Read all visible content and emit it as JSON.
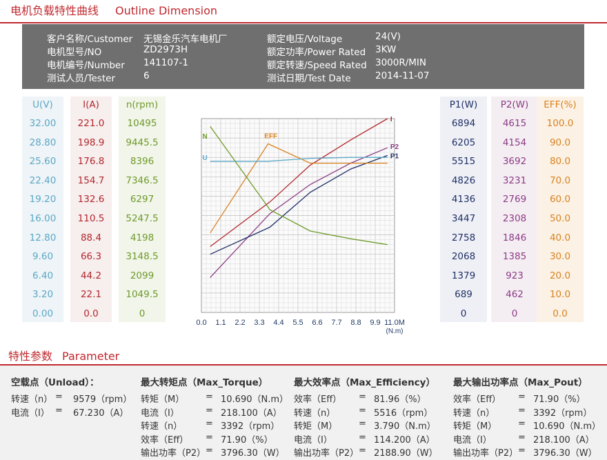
{
  "header": {
    "title_cn": "电机负载特性曲线",
    "title_en": "Outline Dimension"
  },
  "info": [
    {
      "label": "客户名称/Customer",
      "value": "无锡金乐汽车电机厂",
      "label2": "额定电压/Voltage",
      "value2": "24(V)"
    },
    {
      "label": "电机型号/NO",
      "value": "ZD2973H",
      "label2": "额定功率/Power Rated",
      "value2": "3KW"
    },
    {
      "label": "电机编号/Number",
      "value": "141107-1",
      "label2": "额定转速/Speed Rated",
      "value2": "3000R/MIN"
    },
    {
      "label": "测试人员/Tester",
      "value": "6",
      "label2": "测试日期/Test Date",
      "value2": "2014-11-07"
    }
  ],
  "columns": {
    "u": {
      "header": "U(V)",
      "color": "#5ba7c7",
      "values": [
        "32.00",
        "28.80",
        "25.60",
        "22.40",
        "19.20",
        "16.00",
        "12.80",
        "9.60",
        "6.40",
        "3.20",
        "0.00"
      ]
    },
    "i": {
      "header": "I(A)",
      "color": "#b3262b",
      "values": [
        "221.0",
        "198.9",
        "176.8",
        "154.7",
        "132.6",
        "110.5",
        "88.4",
        "66.3",
        "44.2",
        "22.1",
        "0.0"
      ]
    },
    "n": {
      "header": "n(rpm)",
      "color": "#6f9a2a",
      "values": [
        "10495",
        "9445.5",
        "8396",
        "7346.5",
        "6297",
        "5247.5",
        "4198",
        "3148.5",
        "2099",
        "1049.5",
        "0"
      ]
    },
    "p1": {
      "header": "P1(W)",
      "color": "#1f2f66",
      "values": [
        "6894",
        "6205",
        "5515",
        "4826",
        "4136",
        "3447",
        "2758",
        "2068",
        "1379",
        "689",
        "0"
      ]
    },
    "p2": {
      "header": "P2(W)",
      "color": "#8c3b84",
      "values": [
        "4615",
        "4154",
        "3692",
        "3231",
        "2769",
        "2308",
        "1846",
        "1385",
        "923",
        "462",
        "0"
      ]
    },
    "eff": {
      "header": "EFF(%)",
      "color": "#d9821f",
      "values": [
        "100.0",
        "90.0",
        "80.0",
        "70.0",
        "60.0",
        "50.0",
        "40.0",
        "30.0",
        "20.0",
        "10.0",
        "0.0"
      ]
    }
  },
  "chart_data": {
    "type": "line",
    "x_ticks": [
      "0.0",
      "1.1",
      "2.2",
      "3.3",
      "4.4",
      "5.5",
      "6.6",
      "7.7",
      "8.8",
      "9.9",
      "11.0M"
    ],
    "x_unit": "(N.m)",
    "xlim": [
      0,
      11.0
    ],
    "ylim": [
      0,
      10
    ],
    "series": [
      {
        "name": "I",
        "color": "#b3262b",
        "x": [
          0.5,
          3.9,
          6.2,
          8.5,
          10.6
        ],
        "y": [
          3.4,
          5.7,
          7.6,
          8.9,
          10.0
        ]
      },
      {
        "name": "P2",
        "color": "#8c3b84",
        "x": [
          0.5,
          3.9,
          6.2,
          8.5,
          10.6
        ],
        "y": [
          1.8,
          5.1,
          6.6,
          7.7,
          8.5
        ]
      },
      {
        "name": "P1",
        "color": "#1f2f66",
        "x": [
          0.5,
          3.9,
          6.2,
          8.5,
          10.6
        ],
        "y": [
          3.0,
          4.4,
          6.2,
          7.4,
          8.1
        ]
      },
      {
        "name": "EFF",
        "color": "#d9821f",
        "x": [
          0.5,
          3.8,
          6.2,
          8.5,
          10.6
        ],
        "y": [
          4.1,
          8.7,
          7.7,
          7.7,
          7.7
        ]
      },
      {
        "name": "U",
        "color": "#5ba7c7",
        "x": [
          0.5,
          3.8,
          6.2,
          8.5,
          10.6
        ],
        "y": [
          7.8,
          7.8,
          7.95,
          8.0,
          8.0
        ]
      },
      {
        "name": "N",
        "color": "#6f9a2a",
        "x": [
          0.5,
          3.9,
          6.2,
          8.5,
          10.6
        ],
        "y": [
          9.6,
          5.3,
          4.2,
          3.8,
          3.5
        ]
      }
    ]
  },
  "params": {
    "title_cn": "特性参数",
    "title_en": "Parameter",
    "unload": {
      "title": "空载点（Unload）：",
      "rows": [
        [
          "转速（n）",
          "=",
          "9579（rpm）"
        ],
        [
          "电流（I）",
          "=",
          "67.230（A）"
        ]
      ]
    },
    "torque": {
      "title": "最大转矩点（Max_Torque）",
      "rows": [
        [
          "转矩（M）",
          "=",
          "10.690（N.m）"
        ],
        [
          "电流（I）",
          "=",
          "218.100（A）"
        ],
        [
          "转速（n）",
          "=",
          "3392（rpm）"
        ],
        [
          "效率（Eff）",
          "=",
          "71.90（%）"
        ],
        [
          "输出功率（P2）",
          "=",
          "3796.30（W）"
        ]
      ]
    },
    "eff": {
      "title": "最大效率点（Max_Efficiency）",
      "rows": [
        [
          "效率（Eff）",
          "=",
          "81.96（%）"
        ],
        [
          "转速（n）",
          "=",
          "5516（rpm）"
        ],
        [
          "转矩（M）",
          "=",
          "3.790（N.m）"
        ],
        [
          "电流（I）",
          "=",
          "114.200（A）"
        ],
        [
          "输出功率（P2）",
          "=",
          "2188.90（W）"
        ]
      ]
    },
    "pout": {
      "title": "最大输出功率点（Max_Pout）",
      "rows": [
        [
          "效率（Eff）",
          "=",
          "71.90（%）"
        ],
        [
          "转速（n）",
          "=",
          "3392（rpm）"
        ],
        [
          "转矩（M）",
          "=",
          "10.690（N.m）"
        ],
        [
          "电流（I）",
          "=",
          "218.100（A）"
        ],
        [
          "输出功率（P2）",
          "=",
          "3796.30（W）"
        ]
      ]
    }
  }
}
